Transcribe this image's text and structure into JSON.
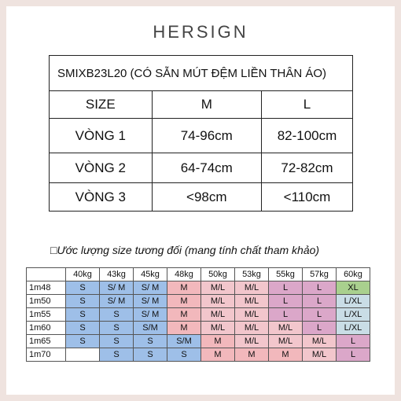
{
  "brand": "HERSIGN",
  "size_table": {
    "title": "SMIXB23L20 (CÓ SẴN MÚT ĐỆM LIỀN THÂN ÁO)",
    "rows": [
      [
        "SIZE",
        "M",
        "L"
      ],
      [
        "VÒNG 1",
        "74-96cm",
        "82-100cm"
      ],
      [
        "VÒNG 2",
        "64-74cm",
        "72-82cm"
      ],
      [
        "VÒNG 3",
        "<98cm",
        "<110cm"
      ]
    ]
  },
  "caption": "□Ước lượng size tương đối (mang tính chất tham khảo)",
  "estimate_table": {
    "header": [
      "40kg",
      "43kg",
      "45kg",
      "48kg",
      "50kg",
      "53kg",
      "55kg",
      "57kg",
      "60kg"
    ],
    "rows": [
      {
        "height": "1m48",
        "cells": [
          "S",
          "S/ M",
          "S/ M",
          "M",
          "M/L",
          "M/L",
          "L",
          "L",
          "XL"
        ]
      },
      {
        "height": "1m50",
        "cells": [
          "S",
          "S/ M",
          "S/ M",
          "M",
          "M/L",
          "M/L",
          "L",
          "L",
          "L/XL"
        ]
      },
      {
        "height": "1m55",
        "cells": [
          "S",
          "S",
          "S/ M",
          "M",
          "M/L",
          "M/L",
          "L",
          "L",
          "L/XL"
        ]
      },
      {
        "height": "1m60",
        "cells": [
          "S",
          "S",
          "S/M",
          "M",
          "M/L",
          "M/L",
          "M/L",
          "L",
          "L/XL"
        ]
      },
      {
        "height": "1m65",
        "cells": [
          "S",
          "S",
          "S",
          "S/M",
          "M",
          "M/L",
          "M/L",
          "M/L",
          "L"
        ]
      },
      {
        "height": "1m70",
        "cells": [
          null,
          "S",
          "S",
          "S",
          "M",
          "M",
          "M",
          "M/L",
          "L"
        ]
      }
    ],
    "cell_colors": {
      "S": "#9ebfe8",
      "S/ M": "#9ebfe8",
      "S/M": "#9ebfe8",
      "M": "#f2b8bc",
      "M/L": "#f2c6cc",
      "L": "#dba7c9",
      "XL": "#a9d08e",
      "L/XL": "#c9dde6"
    }
  }
}
